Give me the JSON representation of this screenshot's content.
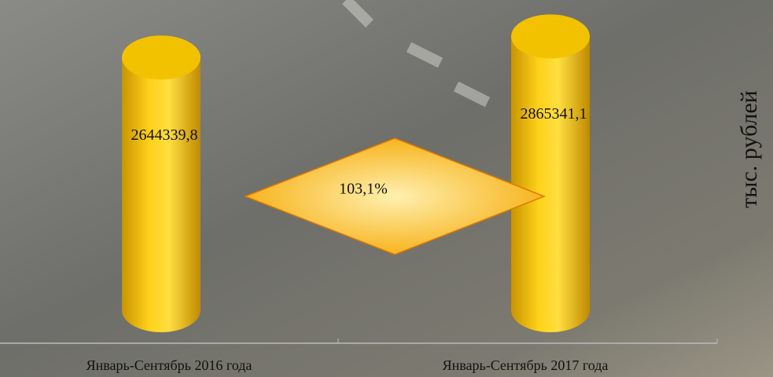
{
  "chart_data": {
    "type": "cylinder",
    "categories": [
      "Январь-Сентябрь 2016 года",
      "Январь-Сентябрь 2017 года"
    ],
    "values": [
      2644339.8,
      2865341.1
    ],
    "value_labels": [
      "2644339,8",
      "2865341,1"
    ],
    "color": "#f2c200",
    "ylim": [
      0,
      3000000
    ],
    "y_label": "тыс. рублей",
    "annotations": [
      {
        "text": "103,1%"
      }
    ]
  }
}
